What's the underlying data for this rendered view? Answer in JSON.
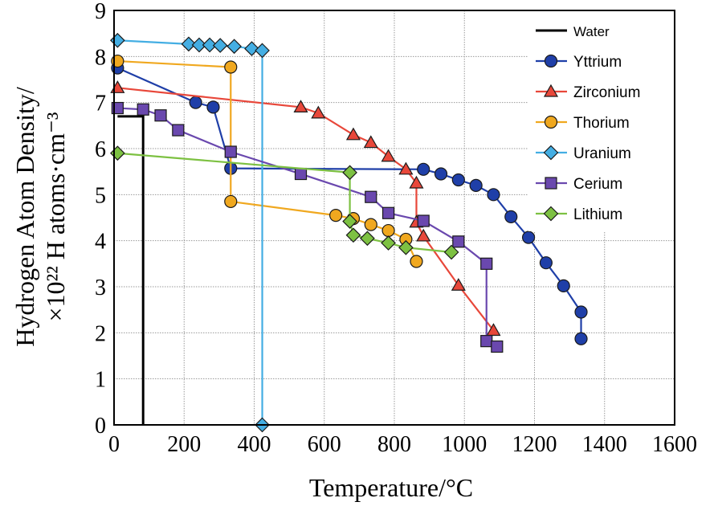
{
  "chart_data": {
    "type": "line",
    "xlabel": "Temperature/°C",
    "ylabel_line1": "Hydrogen Atom Density/",
    "ylabel_line2": "×10²² H atoms·cm⁻³",
    "xlim": [
      0,
      1600
    ],
    "ylim": [
      0,
      9
    ],
    "xticks": [
      0,
      200,
      400,
      600,
      800,
      1000,
      1200,
      1400,
      1600
    ],
    "yticks": [
      0,
      1,
      2,
      3,
      4,
      5,
      6,
      7,
      8,
      9
    ],
    "grid": true,
    "legend_position": "top-right",
    "series": [
      {
        "name": "Water",
        "color": "#000000",
        "marker": "none",
        "points": [
          [
            10,
            6.7
          ],
          [
            83,
            6.7
          ],
          [
            83,
            0
          ]
        ]
      },
      {
        "name": "Yttrium",
        "color": "#1f3fa8",
        "marker": "circle",
        "points": [
          [
            10,
            7.75
          ],
          [
            233,
            7.0
          ],
          [
            283,
            6.9
          ],
          [
            333,
            5.57
          ],
          [
            883,
            5.55
          ],
          [
            933,
            5.45
          ],
          [
            983,
            5.32
          ],
          [
            1033,
            5.2
          ],
          [
            1083,
            5.0
          ],
          [
            1133,
            4.52
          ],
          [
            1183,
            4.07
          ],
          [
            1233,
            3.52
          ],
          [
            1283,
            3.02
          ],
          [
            1333,
            2.45
          ],
          [
            1333,
            1.87
          ]
        ]
      },
      {
        "name": "Zirconium",
        "color": "#e8473a",
        "marker": "triangle",
        "points": [
          [
            10,
            7.32
          ],
          [
            533,
            6.9
          ],
          [
            583,
            6.77
          ],
          [
            683,
            6.3
          ],
          [
            733,
            6.13
          ],
          [
            783,
            5.83
          ],
          [
            833,
            5.55
          ],
          [
            863,
            5.25
          ],
          [
            863,
            4.4
          ],
          [
            883,
            4.1
          ],
          [
            983,
            3.03
          ],
          [
            1083,
            2.05
          ]
        ]
      },
      {
        "name": "Thorium",
        "color": "#f0a81f",
        "marker": "circle",
        "points": [
          [
            10,
            7.9
          ],
          [
            333,
            7.77
          ],
          [
            333,
            4.85
          ],
          [
            633,
            4.55
          ],
          [
            683,
            4.48
          ],
          [
            733,
            4.35
          ],
          [
            783,
            4.22
          ],
          [
            833,
            4.03
          ],
          [
            863,
            3.55
          ]
        ]
      },
      {
        "name": "Uranium",
        "color": "#44aee3",
        "marker": "diamond",
        "points": [
          [
            10,
            8.35
          ],
          [
            213,
            8.27
          ],
          [
            243,
            8.25
          ],
          [
            273,
            8.25
          ],
          [
            303,
            8.24
          ],
          [
            343,
            8.22
          ],
          [
            393,
            8.17
          ],
          [
            423,
            8.13
          ],
          [
            423,
            0.0
          ]
        ]
      },
      {
        "name": "Cerium",
        "color": "#6a48ae",
        "marker": "square",
        "points": [
          [
            10,
            6.88
          ],
          [
            83,
            6.85
          ],
          [
            133,
            6.72
          ],
          [
            183,
            6.4
          ],
          [
            333,
            5.93
          ],
          [
            533,
            5.45
          ],
          [
            733,
            4.95
          ],
          [
            783,
            4.6
          ],
          [
            883,
            4.43
          ],
          [
            983,
            3.98
          ],
          [
            1063,
            3.5
          ],
          [
            1063,
            1.82
          ],
          [
            1093,
            1.7
          ]
        ]
      },
      {
        "name": "Lithium",
        "color": "#7dc142",
        "marker": "diamond",
        "points": [
          [
            10,
            5.9
          ],
          [
            673,
            5.48
          ],
          [
            673,
            4.42
          ],
          [
            683,
            4.12
          ],
          [
            723,
            4.05
          ],
          [
            783,
            3.95
          ],
          [
            833,
            3.85
          ],
          [
            963,
            3.75
          ]
        ]
      }
    ]
  }
}
